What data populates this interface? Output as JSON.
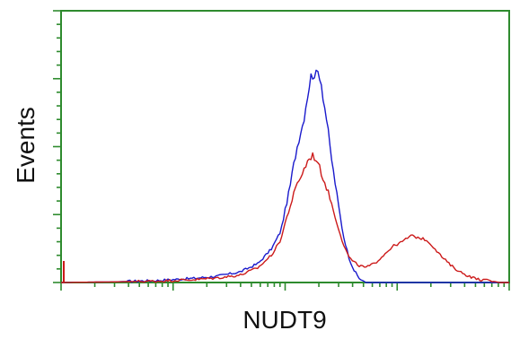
{
  "chart_data": {
    "type": "line",
    "title": "",
    "xlabel": "NUDT9",
    "ylabel": "Events",
    "x_scale": "log",
    "xlim": [
      0,
      100
    ],
    "ylim": [
      0,
      100
    ],
    "grid": false,
    "legend": "none",
    "frame_color": "#2e8b2e",
    "tick_labels_shown": false,
    "series": [
      {
        "color": "#1a1acc",
        "points": [
          [
            0,
            0
          ],
          [
            12,
            0.3
          ],
          [
            22,
            1
          ],
          [
            30,
            2
          ],
          [
            35,
            3
          ],
          [
            40,
            5
          ],
          [
            44,
            9
          ],
          [
            47,
            16
          ],
          [
            49,
            24
          ],
          [
            50,
            34
          ],
          [
            51,
            44
          ],
          [
            51.7,
            53
          ],
          [
            52.5,
            62
          ],
          [
            53.3,
            70
          ],
          [
            54,
            75
          ],
          [
            54.6,
            83
          ],
          [
            55.2,
            91
          ],
          [
            55.8,
            97
          ],
          [
            56.4,
            99
          ],
          [
            57,
            97
          ],
          [
            57.5,
            100
          ],
          [
            58,
            95
          ],
          [
            58.6,
            86
          ],
          [
            59.3,
            76
          ],
          [
            60.1,
            62
          ],
          [
            61,
            49
          ],
          [
            62,
            35
          ],
          [
            63,
            22
          ],
          [
            64.2,
            12
          ],
          [
            65.3,
            6
          ],
          [
            66.5,
            2
          ],
          [
            68,
            0
          ]
        ]
      },
      {
        "color": "#cc1a1a",
        "points": [
          [
            0,
            0
          ],
          [
            12,
            0.3
          ],
          [
            22,
            0.7
          ],
          [
            30,
            1.4
          ],
          [
            35,
            2.2
          ],
          [
            40,
            3.5
          ],
          [
            44,
            7
          ],
          [
            47,
            13
          ],
          [
            49,
            20
          ],
          [
            50,
            28
          ],
          [
            51,
            35
          ],
          [
            52,
            42
          ],
          [
            53,
            48
          ],
          [
            54,
            52
          ],
          [
            55,
            57
          ],
          [
            56,
            60
          ],
          [
            57,
            58
          ],
          [
            58,
            52
          ],
          [
            59,
            46
          ],
          [
            60,
            40
          ],
          [
            61,
            32
          ],
          [
            62,
            25
          ],
          [
            63,
            18
          ],
          [
            64,
            13
          ],
          [
            65,
            10
          ],
          [
            66.5,
            8
          ],
          [
            68,
            7
          ],
          [
            70,
            9
          ],
          [
            72,
            13
          ],
          [
            74,
            17
          ],
          [
            76,
            19
          ],
          [
            78,
            22
          ],
          [
            80,
            21
          ],
          [
            81.5,
            20
          ],
          [
            83,
            17
          ],
          [
            85,
            12
          ],
          [
            87,
            8
          ],
          [
            89,
            5
          ],
          [
            91,
            3
          ],
          [
            93,
            1.5
          ],
          [
            95,
            1
          ],
          [
            98,
            0
          ]
        ]
      }
    ]
  }
}
